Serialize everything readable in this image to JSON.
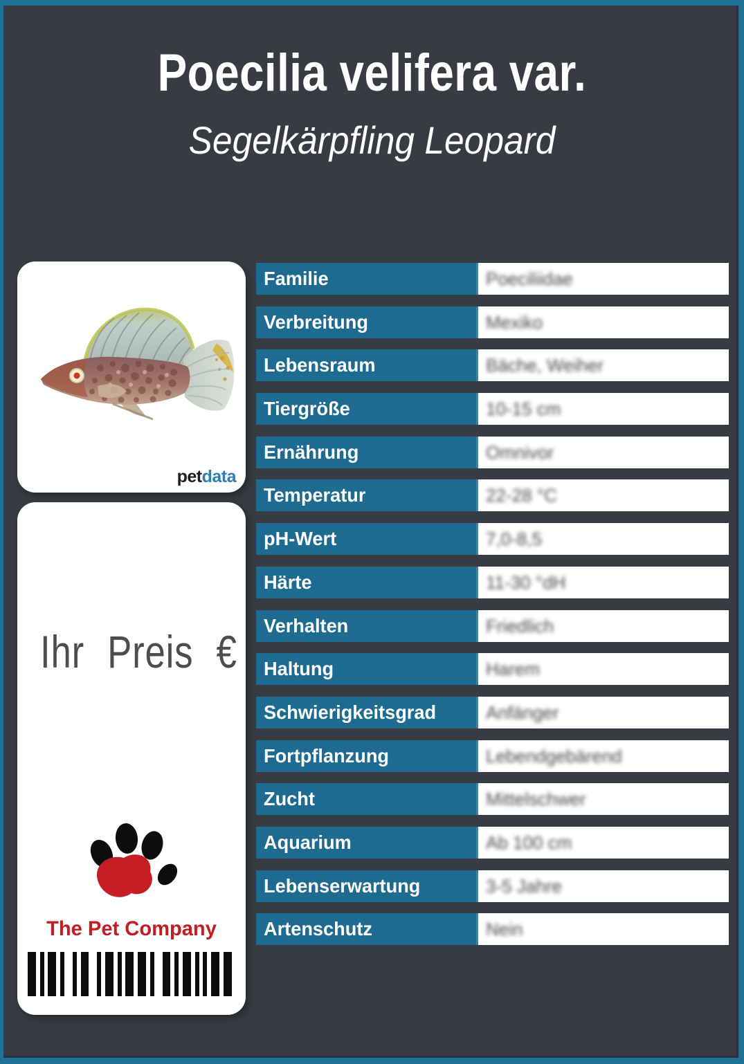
{
  "header": {
    "title": "Poecilia velifera var.",
    "subtitle": "Segelkärpfling Leopard"
  },
  "photo_card": {
    "brand_pet": "pet",
    "brand_data": "data",
    "image_subject": "sailfin-molly-leopard-fish-photo"
  },
  "price_card": {
    "price_label": "Ihr Preis €",
    "company_name": "The Pet Company"
  },
  "table": {
    "rows": [
      {
        "label": "Familie",
        "value": "Poeciliidae"
      },
      {
        "label": "Verbreitung",
        "value": "Mexiko"
      },
      {
        "label": "Lebensraum",
        "value": "Bäche, Weiher"
      },
      {
        "label": "Tiergröße",
        "value": "10-15 cm"
      },
      {
        "label": "Ernährung",
        "value": "Omnivor"
      },
      {
        "label": "Temperatur",
        "value": "22-28 °C"
      },
      {
        "label": "pH-Wert",
        "value": "7,0-8,5"
      },
      {
        "label": "Härte",
        "value": "11-30 °dH"
      },
      {
        "label": "Verhalten",
        "value": "Friedlich"
      },
      {
        "label": "Haltung",
        "value": "Harem"
      },
      {
        "label": "Schwierigkeitsgrad",
        "value": "Anfänger"
      },
      {
        "label": "Fortpflanzung",
        "value": "Lebendgebärend"
      },
      {
        "label": "Zucht",
        "value": "Mittelschwer"
      },
      {
        "label": "Aquarium",
        "value": "Ab 100 cm"
      },
      {
        "label": "Lebenserwartung",
        "value": "3-5 Jahre"
      },
      {
        "label": "Artenschutz",
        "value": "Nein"
      }
    ]
  },
  "barcode": {
    "bars": [
      [
        2,
        1
      ],
      [
        1,
        1
      ],
      [
        2,
        1
      ],
      [
        1,
        2
      ],
      [
        1,
        1
      ],
      [
        2,
        2
      ],
      [
        1,
        1
      ],
      [
        2,
        1
      ],
      [
        1,
        1
      ],
      [
        2,
        1
      ],
      [
        2,
        1
      ],
      [
        1,
        2
      ],
      [
        2,
        1
      ],
      [
        1,
        1
      ],
      [
        2,
        1
      ],
      [
        1,
        1
      ],
      [
        1,
        1
      ],
      [
        2,
        1
      ],
      [
        2,
        0
      ]
    ]
  },
  "colors": {
    "frame_teal": "#1f7296",
    "bg_dark": "#383b42",
    "row_blue": "#1e6b92",
    "brand_blue": "#2e7fae",
    "company_red": "#c41e24"
  }
}
